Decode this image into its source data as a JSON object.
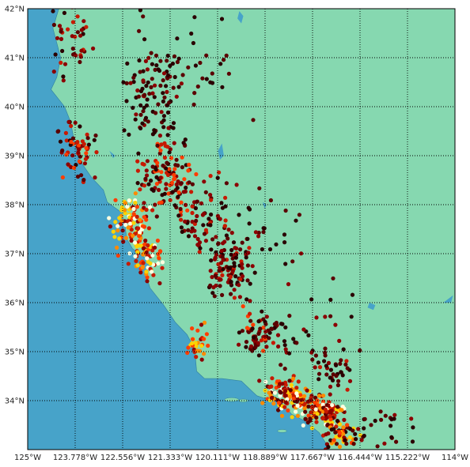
{
  "map": {
    "lat_labels": [
      "42°N",
      "41°N",
      "40°N",
      "39°N",
      "38°N",
      "37°N",
      "36°N",
      "35°N",
      "34°N"
    ],
    "lon_labels": [
      "125°W",
      "123.778°W",
      "122.556°W",
      "121.333°W",
      "120.111°W",
      "118.889°W",
      "117.667°W",
      "116.444°W",
      "115.222°W",
      "114°W"
    ],
    "lon_range": [
      -125,
      -114
    ],
    "lat_range": [
      33.0,
      42.0
    ],
    "grid": "dotted",
    "colors": {
      "ocean": "#47a3c9",
      "land": "#86d8b0",
      "lake": "#47a3c9",
      "frame": "#000000"
    },
    "point_colormap": [
      "#2a0000",
      "#5a0000",
      "#8b0000",
      "#c61a00",
      "#ff3d00",
      "#ff8a00",
      "#ffd200",
      "#ffffe0"
    ],
    "description_free": true
  }
}
